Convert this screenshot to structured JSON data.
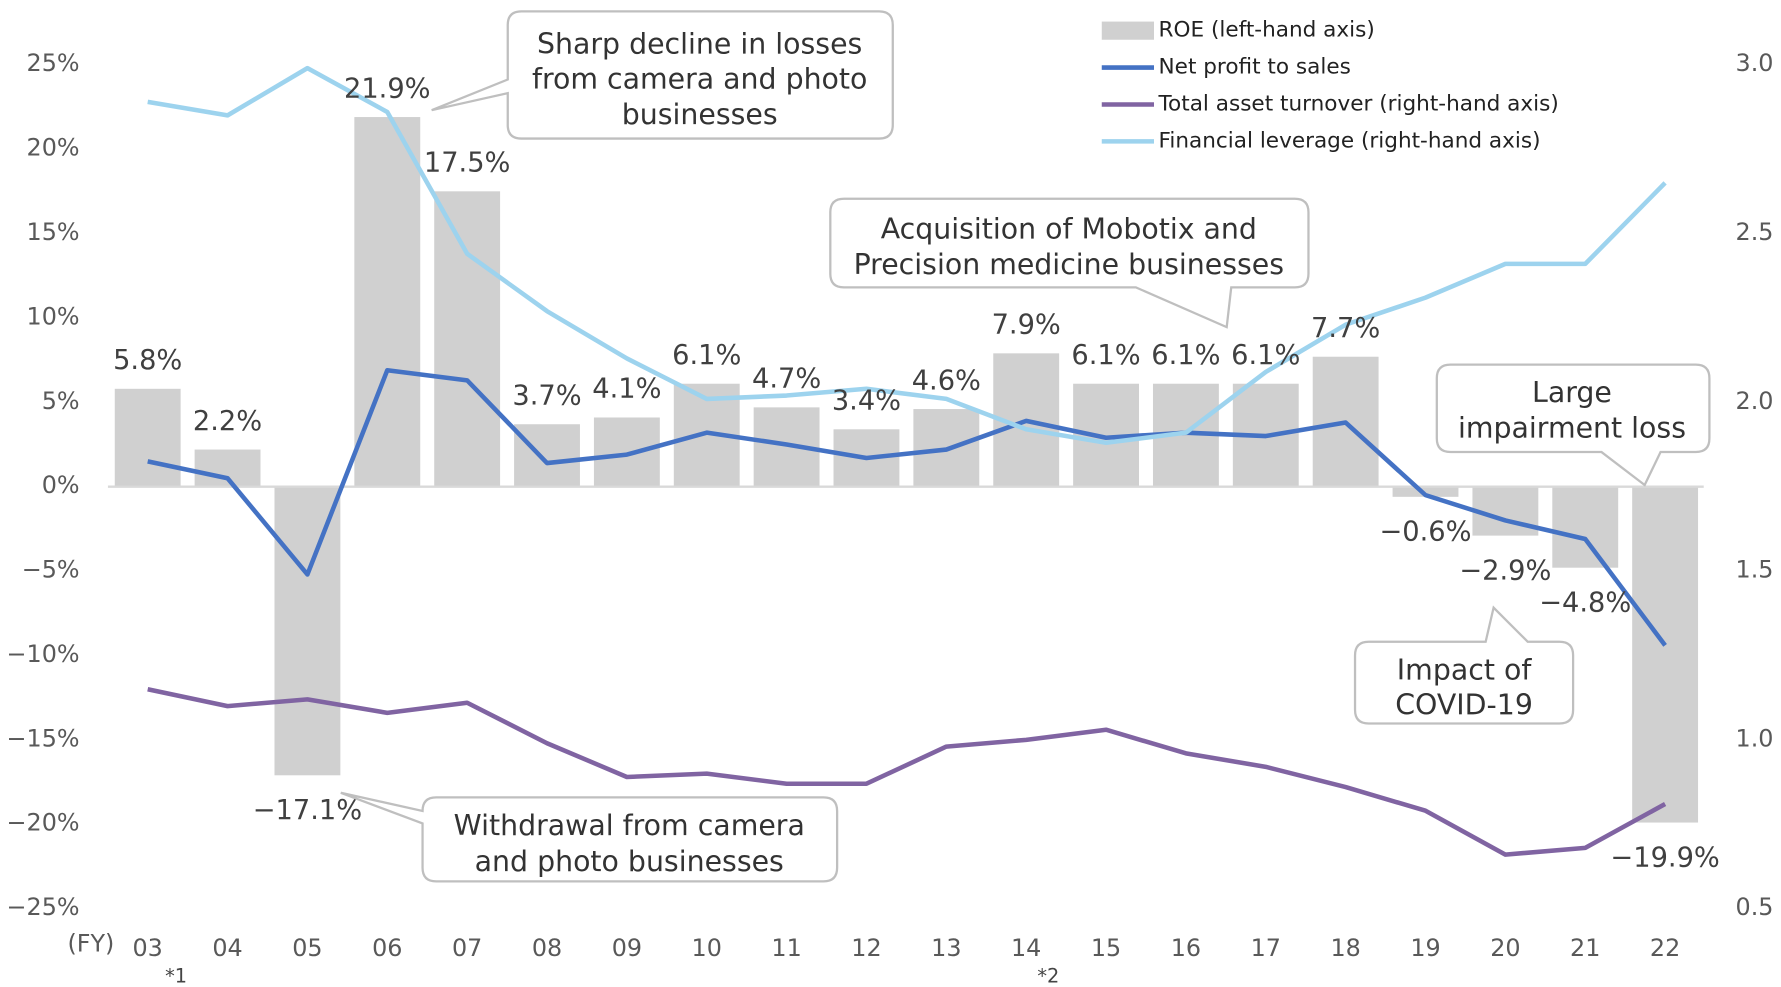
{
  "chart_data": {
    "type": "combo",
    "x_label": "(FY)",
    "categories": [
      "03",
      "04",
      "05",
      "06",
      "07",
      "08",
      "09",
      "10",
      "11",
      "12",
      "13",
      "14",
      "15",
      "16",
      "17",
      "18",
      "19",
      "20",
      "21",
      "22"
    ],
    "footnotes": [
      "*1",
      "*2"
    ],
    "ylim": [
      -25,
      25
    ],
    "yticks": [
      {
        "value": 25,
        "label": "25%"
      },
      {
        "value": 20,
        "label": "20%"
      },
      {
        "value": 15,
        "label": "15%"
      },
      {
        "value": 10,
        "label": "10%"
      },
      {
        "value": 5,
        "label": "5%"
      },
      {
        "value": 0,
        "label": "0%"
      },
      {
        "value": -5,
        "label": "−5%"
      },
      {
        "value": -10,
        "label": "−10%"
      },
      {
        "value": -15,
        "label": "−15%"
      },
      {
        "value": -20,
        "label": "−20%"
      },
      {
        "value": -25,
        "label": "−25%"
      }
    ],
    "y2lim": [
      0.5,
      3.0
    ],
    "y2ticks": [
      {
        "value": 3,
        "label": "3.0"
      },
      2.5,
      {
        "value": 2,
        "label": "2.0"
      },
      1.5,
      {
        "value": 1,
        "label": "1.0"
      },
      0.5
    ],
    "series": [
      {
        "name": "ROE (left-hand axis)",
        "type": "bar",
        "color": "#d0d0d0",
        "axis": "y",
        "values": [
          5.8,
          2.2,
          -17.1,
          21.9,
          17.5,
          3.7,
          4.1,
          6.1,
          4.7,
          3.4,
          4.6,
          7.9,
          6.1,
          6.1,
          6.1,
          7.7,
          -0.6,
          -2.9,
          -4.8,
          -19.9
        ],
        "value_labels": [
          "5.8%",
          "2.2%",
          "−17.1%",
          "21.9%",
          "17.5%",
          "3.7%",
          "4.1%",
          "6.1%",
          "4.7%",
          "3.4%",
          "4.6%",
          "7.9%",
          "6.1%",
          "6.1%",
          "6.1%",
          "7.7%",
          "−0.6%",
          "−2.9%",
          "−4.8%",
          "−19.9%"
        ]
      },
      {
        "name": "Net profit to sales",
        "type": "line",
        "color": "#4472c4",
        "axis": "y",
        "values": [
          1.5,
          0.5,
          -5.2,
          6.9,
          6.3,
          1.4,
          1.9,
          3.2,
          2.5,
          1.7,
          2.2,
          3.9,
          2.9,
          3.2,
          3.0,
          3.8,
          -0.5,
          -2.0,
          -3.1,
          -9.4
        ]
      },
      {
        "name": "Total asset turnover (right-hand axis)",
        "type": "line",
        "color": "#8064a2",
        "axis": "y2",
        "values": [
          1.15,
          1.1,
          1.12,
          1.08,
          1.11,
          0.99,
          0.89,
          0.9,
          0.87,
          0.87,
          0.98,
          1.0,
          1.03,
          0.96,
          0.92,
          0.86,
          0.79,
          0.66,
          0.68,
          0.81
        ]
      },
      {
        "name": "Financial leverage (right-hand axis)",
        "type": "line",
        "color": "#9dd3ee",
        "axis": "y2",
        "values": [
          2.89,
          2.85,
          2.99,
          2.86,
          2.44,
          2.27,
          2.13,
          2.01,
          2.02,
          2.04,
          2.01,
          1.92,
          1.88,
          1.91,
          2.09,
          2.23,
          2.31,
          2.41,
          2.41,
          2.65
        ]
      }
    ],
    "annotations": [
      [
        "Sharp decline in losses",
        "from camera and photo",
        "businesses"
      ],
      [
        "Acquisition of Mobotix and",
        "Precision medicine businesses"
      ],
      [
        "Large",
        "impairment loss"
      ],
      [
        "Impact of",
        "COVID-19"
      ],
      [
        "Withdrawal from camera",
        "and photo businesses"
      ]
    ]
  }
}
